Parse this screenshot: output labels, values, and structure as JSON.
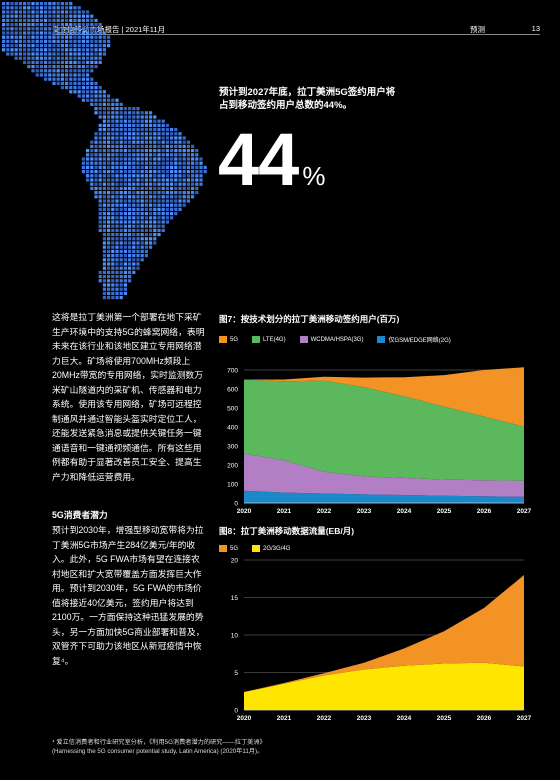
{
  "header": {
    "left": "爱立信移动市场报告 | 2021年11月",
    "section": "预测",
    "page": "13"
  },
  "headline": "预计到2027年底，拉丁美洲5G签约用户将占到移动签约用户总数的44%。",
  "big_number": "44",
  "big_unit": "%",
  "paragraph1": "这将是拉丁美洲第一个部署在地下采矿生产环境中的支持5G的蜂窝网络，表明未来在该行业和该地区建立专用网络潜力巨大。矿场将使用700MHz频段上20MHz带宽的专用网络，实时监测数万米矿山隧道内的采矿机、传感器和电力系统。使用该专用网络，矿场可远程控制通风并通过智能头盔实时定位工人，还能发送紧急消息或提供关键任务一键通语音和一键通视频通信。所有这些用例都有助于显著改善员工安全、提高生产力和降低运营费用。",
  "subhead": "5G消费者潜力",
  "paragraph2": "预计到2030年，增强型移动宽带将为拉丁美洲5G市场产生284亿美元/年的收入。此外，5G FWA市场有望在连接农村地区和扩大宽带覆盖方面发挥巨大作用。预计到2030年，5G FWA的市场价值将接近40亿美元，签约用户将达到2100万。一方面保持这种迅猛发展的势头，另一方面加快5G商业部署和普及，双管齐下可助力该地区从新冠疫情中恢复⁴。",
  "footnote_line1": "⁴ 爱立信消费者和行业研究室分析，《利用5G消费者潜力的研究——拉丁美洲》",
  "footnote_line2": "(Harnessing the 5G consumer potential study, Latin America) (2020年11月)。",
  "colors": {
    "5g": "#F39325",
    "lte": "#5CB85C",
    "wcdma": "#B27FC4",
    "gsm": "#1B89C9",
    "g234": "#FFE600"
  },
  "chart_data": [
    {
      "type": "area",
      "title": "图7：按技术划分的拉丁美洲移动签约用户(百万)",
      "x": [
        2020,
        2021,
        2022,
        2023,
        2024,
        2025,
        2026,
        2027
      ],
      "ylim": [
        0,
        700
      ],
      "yticks": [
        0,
        100,
        200,
        300,
        400,
        500,
        600,
        700
      ],
      "stacked": true,
      "series": [
        {
          "name": "仅GSM/EDGE网络(2G)",
          "values": [
            65,
            55,
            50,
            45,
            42,
            38,
            35,
            32
          ]
        },
        {
          "name": "WCDMA/HSPA(3G)",
          "values": [
            195,
            170,
            115,
            95,
            90,
            85,
            85,
            85
          ]
        },
        {
          "name": "LTE(4G)",
          "values": [
            390,
            415,
            480,
            470,
            430,
            385,
            335,
            285
          ]
        },
        {
          "name": "5G",
          "values": [
            0,
            10,
            20,
            50,
            100,
            165,
            245,
            313
          ]
        }
      ],
      "legend_order": [
        "5G",
        "LTE(4G)",
        "WCDMA/HSPA(3G)",
        "仅GSM/EDGE网络(2G)"
      ]
    },
    {
      "type": "area",
      "title": "图8：拉丁美洲移动数据流量(EB/月)",
      "x": [
        2020,
        2021,
        2022,
        2023,
        2024,
        2025,
        2026,
        2027
      ],
      "ylim": [
        0,
        20
      ],
      "yticks": [
        0,
        5,
        10,
        15,
        20
      ],
      "stacked": true,
      "series": [
        {
          "name": "2G/3G/4G",
          "values": [
            2.4,
            3.5,
            4.6,
            5.4,
            5.9,
            6.2,
            6.3,
            5.8
          ]
        },
        {
          "name": "5G",
          "values": [
            0,
            0.1,
            0.3,
            0.9,
            2.3,
            4.3,
            7.3,
            12.2
          ]
        }
      ],
      "legend_order": [
        "5G",
        "2G/3G/4G"
      ]
    }
  ]
}
